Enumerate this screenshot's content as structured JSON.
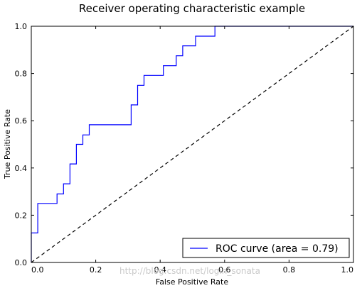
{
  "chart_data": {
    "type": "line",
    "title": "Receiver operating characteristic example",
    "xlabel": "False Positive Rate",
    "ylabel": "True Positive Rate",
    "xlim": [
      0.0,
      1.0
    ],
    "ylim": [
      0.0,
      1.0
    ],
    "xticks": [
      "0.0",
      "0.2",
      "0.4",
      "0.6",
      "0.8",
      "1.0"
    ],
    "yticks": [
      "0.0",
      "0.2",
      "0.4",
      "0.6",
      "0.8",
      "1.0"
    ],
    "grid": false,
    "legend_position": "lower-right",
    "series": [
      {
        "name": "ROC curve (area = 0.79)",
        "color": "#0000ff",
        "style": "solid",
        "x": [
          0.0,
          0.0,
          0.02,
          0.02,
          0.08,
          0.08,
          0.1,
          0.1,
          0.12,
          0.12,
          0.14,
          0.14,
          0.16,
          0.16,
          0.18,
          0.18,
          0.31,
          0.31,
          0.33,
          0.33,
          0.35,
          0.35,
          0.41,
          0.41,
          0.45,
          0.45,
          0.47,
          0.47,
          0.51,
          0.51,
          0.57,
          0.57,
          1.0
        ],
        "y": [
          0.0,
          0.125,
          0.125,
          0.25,
          0.25,
          0.29,
          0.29,
          0.333,
          0.333,
          0.417,
          0.417,
          0.5,
          0.5,
          0.54,
          0.54,
          0.583,
          0.583,
          0.667,
          0.667,
          0.75,
          0.75,
          0.792,
          0.792,
          0.833,
          0.833,
          0.875,
          0.875,
          0.917,
          0.917,
          0.958,
          0.958,
          1.0,
          1.0
        ]
      },
      {
        "name": "",
        "color": "#000000",
        "style": "dashed",
        "x": [
          0.0,
          1.0
        ],
        "y": [
          0.0,
          1.0
        ]
      }
    ]
  },
  "watermark": "http://blog.csdn.net/login_sonata"
}
